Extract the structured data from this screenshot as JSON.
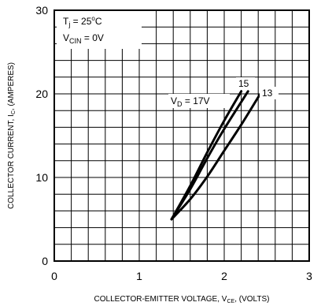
{
  "chart_data": {
    "type": "line",
    "xlabel": "COLLECTOR-EMITTER VOLTAGE, V",
    "xlabel_sub": "CE",
    "xlabel_suffix": ", (VOLTS)",
    "ylabel": "COLLECTOR CURRENT, I",
    "ylabel_sub": "C",
    "ylabel_suffix": ", (AMPERES)",
    "xlim": [
      0,
      3
    ],
    "ylim": [
      0,
      30
    ],
    "x_ticks": [
      0,
      1,
      2,
      3
    ],
    "y_ticks": [
      0,
      10,
      20,
      30
    ],
    "x_minor_step": 0.2,
    "y_minor_step": 2,
    "grid": true,
    "annotations": {
      "tj": {
        "main": "T",
        "sub": "j",
        "mid": " = 25",
        "sup": "o",
        "tail": "C"
      },
      "vcin": {
        "main": "V",
        "sub": "CIN",
        "tail": " = 0V"
      }
    },
    "series": [
      {
        "label_main": "V",
        "label_sub": "D",
        "label_tail": " = 17V",
        "points": [
          [
            1.38,
            5
          ],
          [
            1.6,
            9
          ],
          [
            1.8,
            13
          ],
          [
            2.0,
            16.8
          ],
          [
            2.2,
            20.3
          ]
        ]
      },
      {
        "label": "15",
        "points": [
          [
            1.38,
            5
          ],
          [
            1.6,
            8.6
          ],
          [
            1.8,
            12.3
          ],
          [
            2.0,
            15.8
          ],
          [
            2.28,
            20.3
          ]
        ]
      },
      {
        "label": "13",
        "points": [
          [
            1.38,
            5
          ],
          [
            1.6,
            7.4
          ],
          [
            1.8,
            10.1
          ],
          [
            2.0,
            13.2
          ],
          [
            2.2,
            16.3
          ],
          [
            2.4,
            19.6
          ],
          [
            2.42,
            19.9
          ]
        ]
      }
    ]
  }
}
